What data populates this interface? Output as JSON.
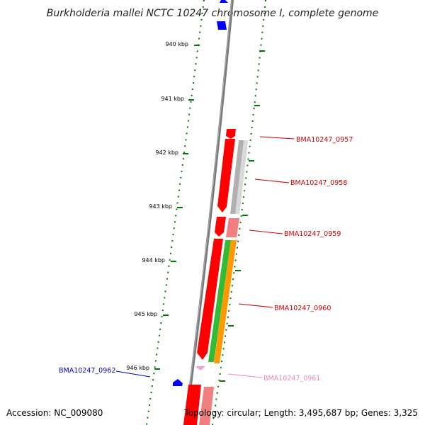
{
  "title": "Burkholderia mallei NCTC 10247 chromosome I, complete genome",
  "accession": "Accession: NC_009080",
  "summary": "Topology: circular; Length: 3,495,687 bp; Genes: 3,325",
  "ruler": {
    "ticks": [
      {
        "label": "940 kbp",
        "kbp": 940
      },
      {
        "label": "941 kbp",
        "kbp": 941
      },
      {
        "label": "942 kbp",
        "kbp": 942
      },
      {
        "label": "943 kbp",
        "kbp": 943
      },
      {
        "label": "944 kbp",
        "kbp": 944
      },
      {
        "label": "945 kbp",
        "kbp": 945
      },
      {
        "label": "946 kbp",
        "kbp": 946
      }
    ]
  },
  "genes": [
    {
      "label": "BMA10247_0957",
      "strand": "forward",
      "color": "#cc0000"
    },
    {
      "label": "BMA10247_0958",
      "strand": "forward",
      "color": "#cc0000"
    },
    {
      "label": "BMA10247_0959",
      "strand": "forward",
      "color": "#cc0000"
    },
    {
      "label": "BMA10247_0960",
      "strand": "forward",
      "color": "#cc0000"
    },
    {
      "label": "BMA10247_0961",
      "strand": "forward",
      "color": "#ee88bb"
    },
    {
      "label": "BMA10247_0962",
      "strand": "reverse",
      "color": "#0000bb"
    }
  ],
  "colors": {
    "backbone": "#808080",
    "tick_marks": "#007700",
    "cds": "#ff0000",
    "cds_light": "#f08080",
    "blast_gray": "#b0b0b0",
    "blast_green": "#33bb33",
    "blast_orange": "#ff9900",
    "reverse_gene": "#0000ff",
    "rna": "#ff99cc"
  }
}
